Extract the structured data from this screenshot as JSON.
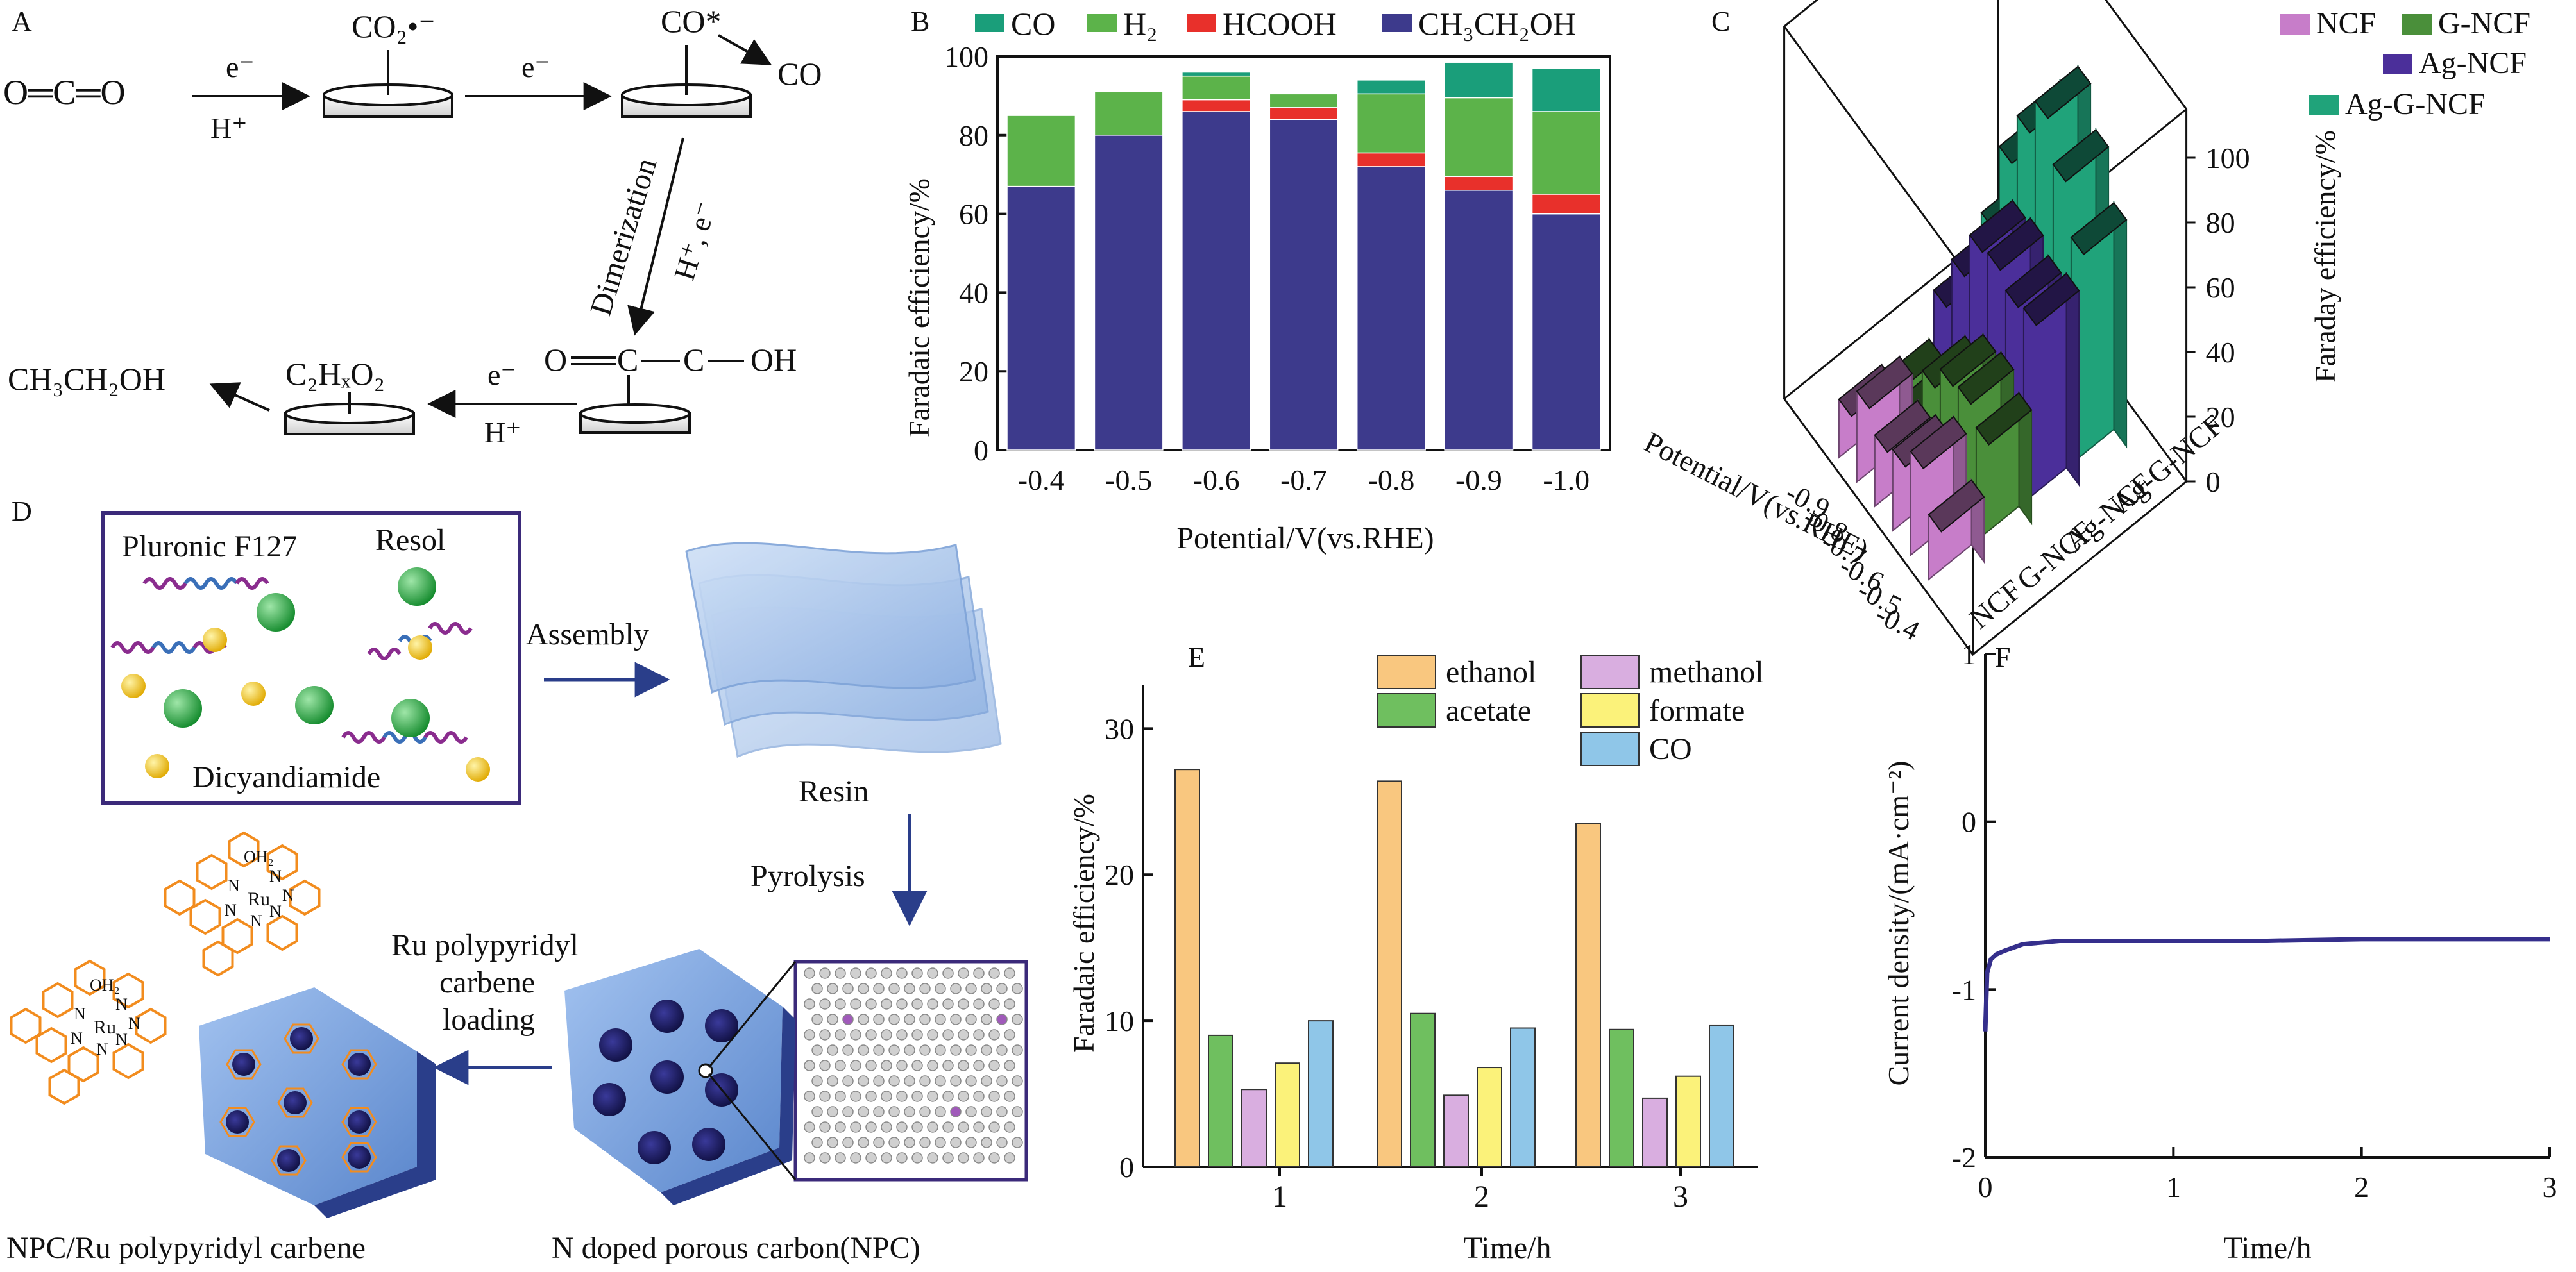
{
  "panels": {
    "A": {
      "label": "A",
      "co2_molecule": "O═C═O",
      "step1_top": "e⁻",
      "step1_bottom": "H⁺",
      "co2_radical": "CO₂•⁻",
      "step2_top": "e⁻",
      "co_star": "CO*",
      "co_released": "CO",
      "dimerization": "Dimerization",
      "h_e": "H⁺, e⁻",
      "dimer_o": "O",
      "dimer_c1": "C",
      "dimer_c2": "C",
      "dimer_oh": "OH",
      "step3_top": "e⁻",
      "step3_bottom": "H⁺",
      "intermediate": "C₂HₓO₂",
      "ethanol": "CH₃CH₂OH"
    },
    "D": {
      "label": "D",
      "pluronic": "Pluronic F127",
      "resol": "Resol",
      "dicyandiamide": "Dicyandiamide",
      "assembly": "Assembly",
      "resin": "Resin",
      "pyrolysis": "Pyrolysis",
      "loading": [
        "Ru polypyridyl",
        "carbene",
        "loading"
      ],
      "npc_ru": "NPC/Ru polypyridyl carbene",
      "npc": "N doped porous carbon(NPC)",
      "oh2": "OH₂",
      "ru": "Ru",
      "n": "N"
    }
  },
  "colors": {
    "co": "#1a9e7a",
    "h2": "#5cb34a",
    "hcooh": "#e8302b",
    "ethanol_b": "#3d3a8c",
    "ncf": "#c77dc9",
    "g_ncf": "#4a8f3a",
    "ag_ncf": "#4b2f9a",
    "ag_g_ncf": "#20a37a",
    "e_ethanol": "#f9c77f",
    "e_acetate": "#6fbf5f",
    "e_methanol": "#d9aee0",
    "e_formate": "#fbf27a",
    "e_co": "#8fc6e8",
    "line_f": "#352f8c",
    "hex_top": "#6a9bd8",
    "hex_side": "#2a3e8a",
    "ru_ligand": "#f28c1e",
    "green_sphere": "#1e9e3a",
    "yellow_sphere": "#f2c40d",
    "chain_purple": "#8a2c8e",
    "chain_blue": "#3a6fb8",
    "resin": "#a9c4ea"
  },
  "chart_data": [
    {
      "panel": "B",
      "type": "bar",
      "stacked": true,
      "categories": [
        "-0.4",
        "-0.5",
        "-0.6",
        "-0.7",
        "-0.8",
        "-0.9",
        "-1.0"
      ],
      "series": [
        {
          "name": "CH₃CH₂OH",
          "color": "#3d3a8c",
          "values": [
            67,
            80,
            86,
            84,
            72,
            66,
            60
          ]
        },
        {
          "name": "HCOOH",
          "color": "#e8302b",
          "values": [
            0,
            0,
            3,
            3,
            3.5,
            3.5,
            5
          ]
        },
        {
          "name": "H₂",
          "color": "#5cb34a",
          "values": [
            18,
            11,
            6,
            3.5,
            15,
            20,
            21
          ]
        },
        {
          "name": "CO",
          "color": "#1a9e7a",
          "values": [
            0,
            0,
            1,
            0,
            3.5,
            9,
            11
          ]
        }
      ],
      "xlabel": "Potential/V(vs.RHE)",
      "ylabel": "Faradaic efficiency/%",
      "ylim": [
        0,
        100
      ],
      "yticks": [
        0,
        20,
        40,
        60,
        80,
        100
      ],
      "legend": "top"
    },
    {
      "panel": "C",
      "type": "bar3d",
      "x_categories": [
        "-0.4",
        "-0.5",
        "-0.6",
        "-0.7",
        "-0.8",
        "-0.9"
      ],
      "y_categories": [
        "NCF",
        "G-NCF",
        "Ag-NCF",
        "Ag-G-NCF"
      ],
      "series": [
        {
          "name": "NCF",
          "color": "#c77dc9",
          "values": [
            20,
            32,
            25,
            22,
            28,
            18
          ]
        },
        {
          "name": "G-NCF",
          "color": "#4a8f3a",
          "values": [
            35,
            40,
            38,
            30,
            15,
            14
          ]
        },
        {
          "name": "Ag-NCF",
          "color": "#4b2f9a",
          "values": [
            60,
            58,
            62,
            60,
            45,
            28
          ]
        },
        {
          "name": "Ag-G-NCF",
          "color": "#20a37a",
          "values": [
            70,
            85,
            97,
            85,
            68,
            40
          ]
        }
      ],
      "xlabel": "Potential/V(vs.RHE)",
      "zlabel": "Faraday efficiency/%",
      "zticks": [
        0,
        20,
        40,
        60,
        80,
        100
      ],
      "legend": "top-right"
    },
    {
      "panel": "E",
      "type": "bar",
      "categories": [
        "1",
        "2",
        "3"
      ],
      "series": [
        {
          "name": "ethanol",
          "color": "#f9c77f",
          "values": [
            27.2,
            26.4,
            23.5
          ]
        },
        {
          "name": "acetate",
          "color": "#6fbf5f",
          "values": [
            9.0,
            10.5,
            9.4
          ]
        },
        {
          "name": "methanol",
          "color": "#d9aee0",
          "values": [
            5.3,
            4.9,
            4.7
          ]
        },
        {
          "name": "formate",
          "color": "#fbf27a",
          "values": [
            7.1,
            6.8,
            6.2
          ]
        },
        {
          "name": "CO",
          "color": "#8fc6e8",
          "values": [
            10.0,
            9.5,
            9.7
          ]
        }
      ],
      "xlabel": "Time/h",
      "ylabel": "Faradaic efficiency/%",
      "ylim": [
        0,
        33
      ],
      "yticks": [
        0,
        10,
        20,
        30
      ],
      "legend": "top"
    },
    {
      "panel": "F",
      "type": "line",
      "series": [
        {
          "name": "",
          "color": "#352f8c",
          "x": [
            0.0,
            0.01,
            0.03,
            0.06,
            0.1,
            0.15,
            0.2,
            0.3,
            0.4,
            0.6,
            1.0,
            1.5,
            2.0,
            2.5,
            3.0
          ],
          "y": [
            -1.25,
            -0.9,
            -0.82,
            -0.79,
            -0.77,
            -0.75,
            -0.73,
            -0.72,
            -0.71,
            -0.71,
            -0.71,
            -0.71,
            -0.7,
            -0.7,
            -0.7
          ]
        }
      ],
      "xlabel": "Time/h",
      "ylabel": "Current density/(mA·cm⁻²)",
      "xlim": [
        0,
        3
      ],
      "ylim": [
        -2,
        1
      ],
      "xticks": [
        0,
        1,
        2,
        3
      ],
      "yticks": [
        -2,
        -1,
        0,
        1
      ],
      "grid": false
    }
  ]
}
